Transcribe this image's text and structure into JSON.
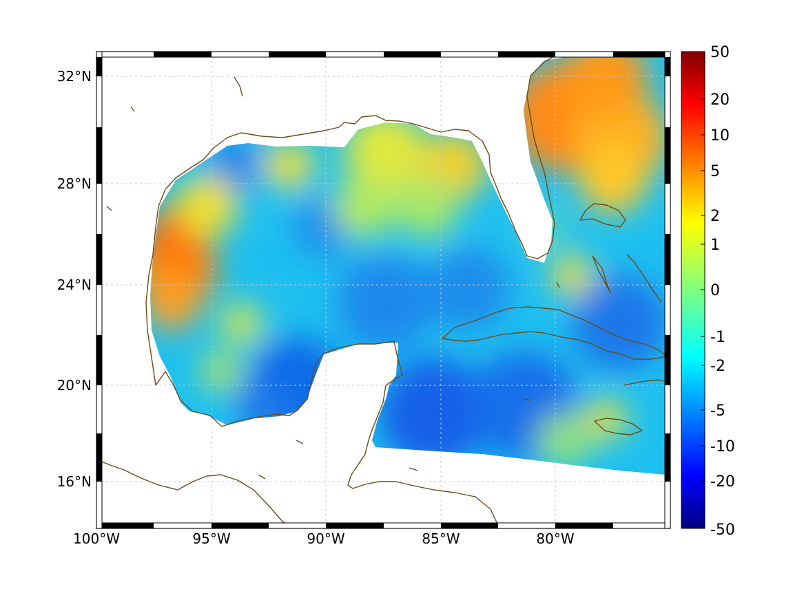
{
  "map": {
    "x_ticks": [
      {
        "label": "100°W",
        "lon": -100
      },
      {
        "label": "95°W",
        "lon": -95
      },
      {
        "label": "90°W",
        "lon": -90
      },
      {
        "label": "85°W",
        "lon": -85
      },
      {
        "label": "80°W",
        "lon": -80
      }
    ],
    "y_ticks": [
      {
        "label": "32°N",
        "lat": 32
      },
      {
        "label": "28°N",
        "lat": 28
      },
      {
        "label": "24°N",
        "lat": 24
      },
      {
        "label": "20°N",
        "lat": 20
      },
      {
        "label": "16°N",
        "lat": 16
      }
    ],
    "lon_range": [
      -100,
      -75
    ],
    "lat_range": [
      14.3,
      33
    ],
    "grid": true,
    "coastline_color": "#6b4a14"
  },
  "colorbar": {
    "labels": [
      "50",
      "20",
      "10",
      "5",
      "2",
      "1",
      "0",
      "-1",
      "-2",
      "-5",
      "-10",
      "-20",
      "-50"
    ],
    "colormap": "jet",
    "top_color": "#7f0000",
    "bottom_color": "#00007f"
  }
}
